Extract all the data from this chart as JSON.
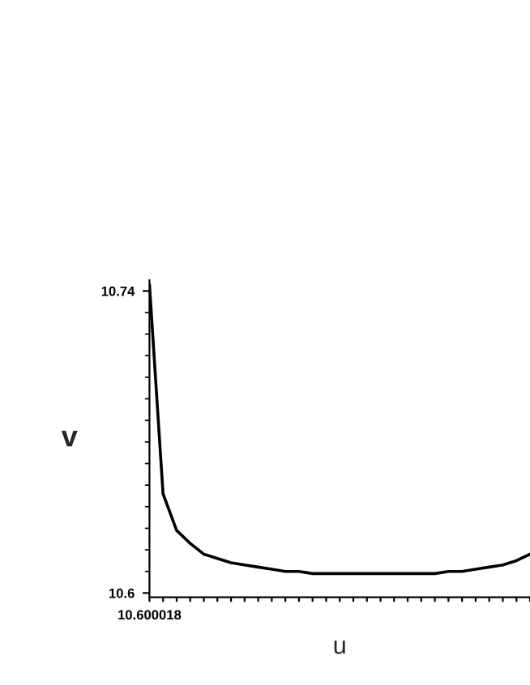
{
  "chart_data": {
    "type": "line",
    "xlabel": "u",
    "ylabel": "v",
    "categories": [
      "10.600018",
      null,
      null,
      null,
      null,
      null,
      null,
      null,
      null,
      null,
      null,
      null,
      null,
      null,
      null,
      null,
      null,
      null,
      null,
      null,
      null,
      null,
      null,
      null,
      null,
      null,
      null,
      null,
      null
    ],
    "series": [
      {
        "color": "#000000",
        "values": [
          10.743,
          10.646,
          10.629,
          10.623,
          10.618,
          10.616,
          10.614,
          10.613,
          10.612,
          10.611,
          10.61,
          10.61,
          10.609,
          10.609,
          10.609,
          10.609,
          10.609,
          10.609,
          10.609,
          10.609,
          10.609,
          10.609,
          10.61,
          10.61,
          10.611,
          10.612,
          10.613,
          10.615,
          10.618
        ]
      }
    ],
    "ylim": [
      10.598,
      10.745
    ],
    "yticks": [
      10.6,
      10.74
    ],
    "grid": false,
    "legend": false,
    "marker": "none",
    "line_style": "solid"
  }
}
